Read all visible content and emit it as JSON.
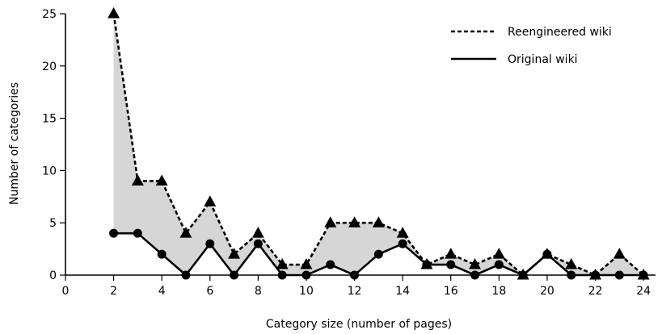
{
  "chart_data": {
    "type": "line",
    "xlabel": "Category size (number of pages)",
    "ylabel": "Number of categories",
    "xlim": [
      0,
      24.5
    ],
    "ylim": [
      0,
      25
    ],
    "x_ticks": [
      0,
      2,
      4,
      6,
      8,
      10,
      12,
      14,
      16,
      18,
      20,
      22,
      24
    ],
    "y_ticks": [
      0,
      5,
      10,
      15,
      20,
      25
    ],
    "x_tick_labels": [
      "0",
      "2",
      "4",
      "6",
      "8",
      "10",
      "12",
      "14",
      "16",
      "18",
      "20",
      "22",
      "24"
    ],
    "y_tick_labels": [
      "0",
      "5",
      "10",
      "15",
      "20",
      "25"
    ],
    "x": [
      2,
      3,
      4,
      5,
      6,
      7,
      8,
      9,
      10,
      11,
      12,
      13,
      14,
      15,
      16,
      17,
      18,
      19,
      20,
      21,
      22,
      23,
      24
    ],
    "series": [
      {
        "name": "Reengineered wiki",
        "line_style": "dashed",
        "marker": "triangle",
        "values": [
          25,
          9,
          9,
          4,
          7,
          2,
          4,
          1,
          1,
          5,
          5,
          5,
          4,
          1,
          2,
          1,
          2,
          0,
          2,
          1,
          0,
          2,
          0
        ]
      },
      {
        "name": "Original wiki",
        "line_style": "solid",
        "marker": "circle",
        "values": [
          4,
          4,
          2,
          0,
          3,
          0,
          3,
          0,
          0,
          1,
          0,
          2,
          3,
          1,
          1,
          0,
          1,
          0,
          2,
          0,
          0,
          0,
          0
        ]
      }
    ],
    "fill_between": {
      "color": "#d6d6d6"
    },
    "grid": false,
    "legend_position": "top-right"
  }
}
